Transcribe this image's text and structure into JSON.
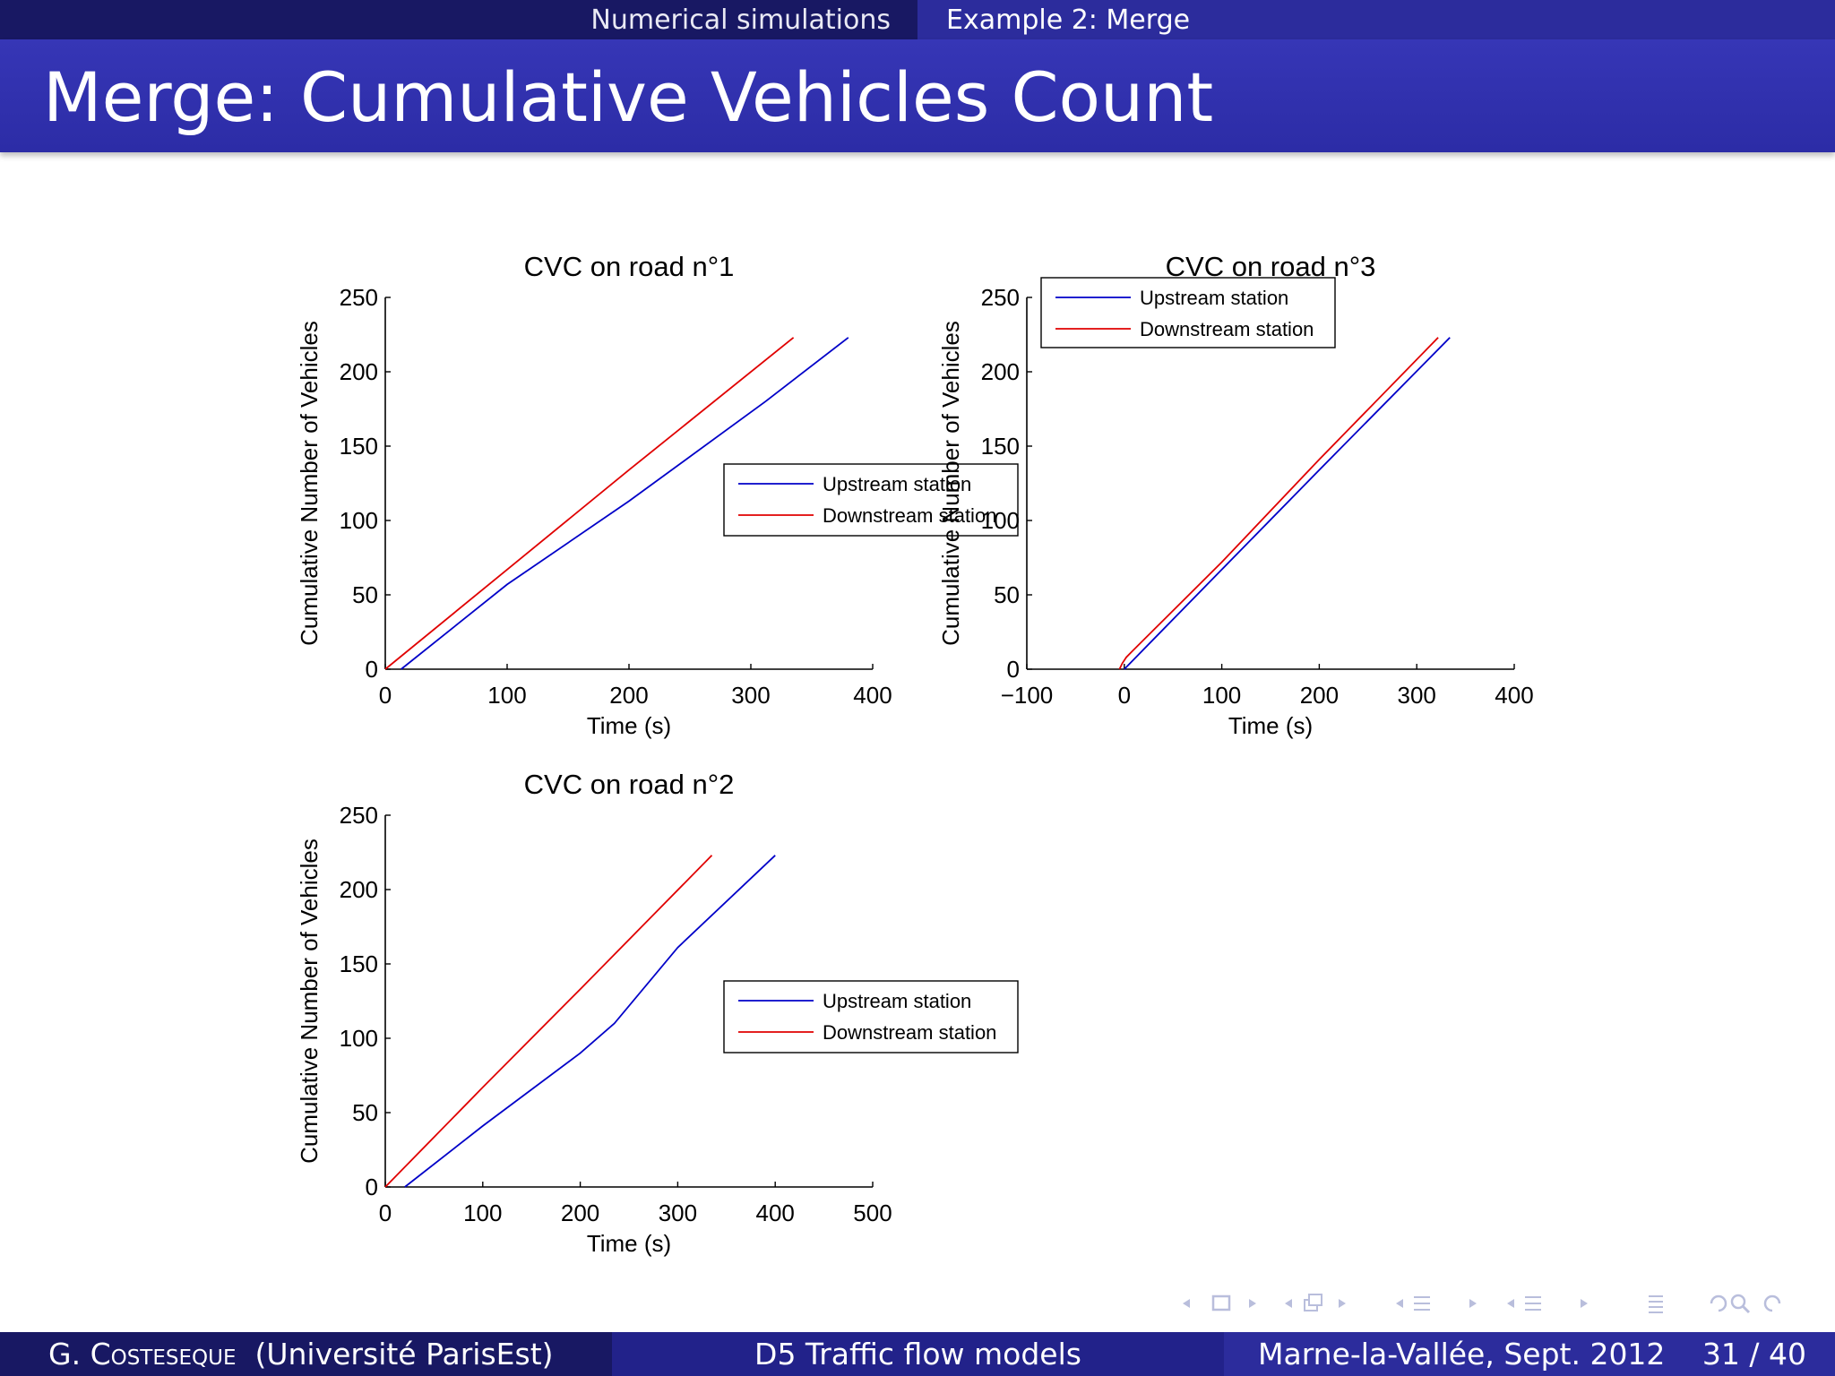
{
  "header": {
    "section": "Numerical simulations",
    "subsection": "Example 2: Merge"
  },
  "slide": {
    "title": "Merge: Cumulative Vehicles Count"
  },
  "footer": {
    "author_initial": "G.",
    "author_name": "Costeseque",
    "affiliation": "(Université ParisEst)",
    "talk": "D5 Traffic flow models",
    "place_date": "Marne-la-Vallée, Sept. 2012",
    "page": "31 / 40"
  },
  "chart_data": [
    {
      "type": "line",
      "title": "CVC on road n°1",
      "xlabel": "Time (s)",
      "ylabel": "Cumulative Number of Vehicles",
      "xlim": [
        0,
        400
      ],
      "ylim": [
        0,
        250
      ],
      "xticks": [
        0,
        100,
        200,
        300,
        400
      ],
      "yticks": [
        0,
        50,
        100,
        150,
        200,
        250
      ],
      "legend": "center-right",
      "series": [
        {
          "name": "Upstream station",
          "color": "#0000c8",
          "x": [
            13,
            100,
            200,
            312,
            380
          ],
          "y": [
            0,
            57,
            113,
            180,
            223
          ]
        },
        {
          "name": "Downstream station",
          "color": "#e00000",
          "x": [
            0,
            100,
            200,
            335
          ],
          "y": [
            0,
            67,
            134,
            223
          ]
        }
      ]
    },
    {
      "type": "line",
      "title": "CVC on road n°3",
      "xlabel": "Time (s)",
      "ylabel": "Cumulative Number of Vehicles",
      "xlim": [
        -100,
        400
      ],
      "ylim": [
        0,
        250
      ],
      "xticks": [
        -100,
        0,
        100,
        200,
        300,
        400
      ],
      "xticklabels": [
        "−100",
        "0",
        "100",
        "200",
        "300",
        "400"
      ],
      "yticks": [
        0,
        50,
        100,
        150,
        200,
        250
      ],
      "legend": "top-left",
      "series": [
        {
          "name": "Upstream station",
          "color": "#0000c8",
          "x": [
            0,
            100,
            200,
            334
          ],
          "y": [
            0,
            67,
            134,
            223
          ]
        },
        {
          "name": "Downstream station",
          "color": "#e00000",
          "x": [
            -5,
            -2,
            2,
            8,
            100,
            200,
            322
          ],
          "y": [
            0,
            4,
            8,
            12,
            72,
            141,
            223
          ]
        }
      ]
    },
    {
      "type": "line",
      "title": "CVC on road n°2",
      "xlabel": "Time (s)",
      "ylabel": "Cumulative Number of Vehicles",
      "xlim": [
        0,
        500
      ],
      "ylim": [
        0,
        250
      ],
      "xticks": [
        0,
        100,
        200,
        300,
        400,
        500
      ],
      "yticks": [
        0,
        50,
        100,
        150,
        200,
        250
      ],
      "legend": "center-right",
      "series": [
        {
          "name": "Upstream station",
          "color": "#0000c8",
          "x": [
            20,
            100,
            200,
            235,
            300,
            400
          ],
          "y": [
            0,
            41,
            90,
            110,
            161,
            223
          ]
        },
        {
          "name": "Downstream station",
          "color": "#e00000",
          "x": [
            0,
            100,
            200,
            335
          ],
          "y": [
            0,
            67,
            133,
            223
          ]
        }
      ]
    }
  ]
}
